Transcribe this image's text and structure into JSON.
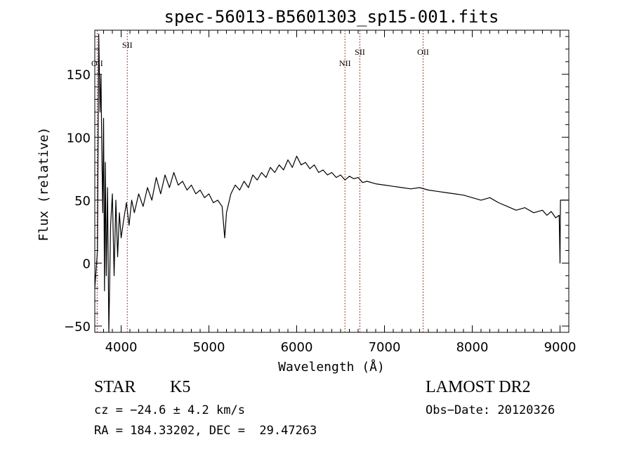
{
  "chart_data": {
    "type": "line",
    "title": "spec-56013-B5601303_sp15-001.fits",
    "xlabel": "Wavelength (Å)",
    "ylabel": "Flux (relative)",
    "xlim": [
      3700,
      9100
    ],
    "ylim": [
      -55,
      185
    ],
    "xticks": [
      4000,
      5000,
      6000,
      7000,
      8000,
      9000
    ],
    "yticks": [
      -50,
      0,
      50,
      100,
      150
    ],
    "grid": false,
    "series": [
      {
        "color": "#000000",
        "x": [
          3700,
          3715,
          3730,
          3745,
          3760,
          3770,
          3780,
          3790,
          3800,
          3810,
          3820,
          3830,
          3845,
          3860,
          3880,
          3900,
          3920,
          3940,
          3960,
          3980,
          4000,
          4030,
          4060,
          4090,
          4120,
          4150,
          4200,
          4250,
          4300,
          4350,
          4400,
          4450,
          4500,
          4550,
          4600,
          4650,
          4700,
          4750,
          4800,
          4850,
          4900,
          4950,
          5000,
          5050,
          5100,
          5150,
          5180,
          5200,
          5250,
          5300,
          5350,
          5400,
          5450,
          5500,
          5550,
          5600,
          5650,
          5700,
          5750,
          5800,
          5850,
          5900,
          5950,
          6000,
          6050,
          6100,
          6150,
          6200,
          6250,
          6300,
          6350,
          6400,
          6450,
          6500,
          6550,
          6600,
          6650,
          6700,
          6750,
          6800,
          6900,
          7000,
          7100,
          7200,
          7300,
          7400,
          7500,
          7600,
          7700,
          7800,
          7900,
          8000,
          8100,
          8200,
          8300,
          8400,
          8500,
          8600,
          8700,
          8800,
          8850,
          8900,
          8950,
          8990,
          9000,
          9005,
          9010,
          9100
        ],
        "y": [
          -20,
          -5,
          10,
          182,
          120,
          150,
          90,
          40,
          115,
          -22,
          80,
          -10,
          60,
          -55,
          30,
          55,
          -10,
          50,
          5,
          40,
          20,
          35,
          48,
          30,
          50,
          40,
          55,
          45,
          60,
          50,
          68,
          55,
          70,
          60,
          72,
          62,
          65,
          58,
          62,
          55,
          58,
          52,
          55,
          48,
          50,
          45,
          20,
          40,
          55,
          62,
          58,
          65,
          60,
          70,
          66,
          72,
          68,
          76,
          72,
          78,
          74,
          82,
          76,
          85,
          78,
          80,
          75,
          78,
          72,
          74,
          70,
          72,
          68,
          70,
          66,
          69,
          67,
          68,
          64,
          65,
          63,
          62,
          61,
          60,
          59,
          60,
          58,
          57,
          56,
          55,
          54,
          52,
          50,
          52,
          48,
          45,
          42,
          44,
          40,
          42,
          38,
          41,
          36,
          38,
          0,
          50,
          50,
          50
        ]
      }
    ],
    "lines": [
      {
        "label": "OII",
        "x": 3727
      },
      {
        "label": "SII",
        "x": 4070
      },
      {
        "label": "NII",
        "x": 6550
      },
      {
        "label": "SII",
        "x": 6720
      },
      {
        "label": "OII",
        "x": 7440
      }
    ],
    "line_color": "#b03a2e"
  },
  "info": {
    "class": "STAR",
    "subclass": "K5",
    "survey": "LAMOST DR2",
    "cz": "cz = −24.6 ± 4.2 km/s",
    "obsdate": "Obs−Date: 20120326",
    "radec": "RA = 184.33202, DEC =  29.47263"
  }
}
